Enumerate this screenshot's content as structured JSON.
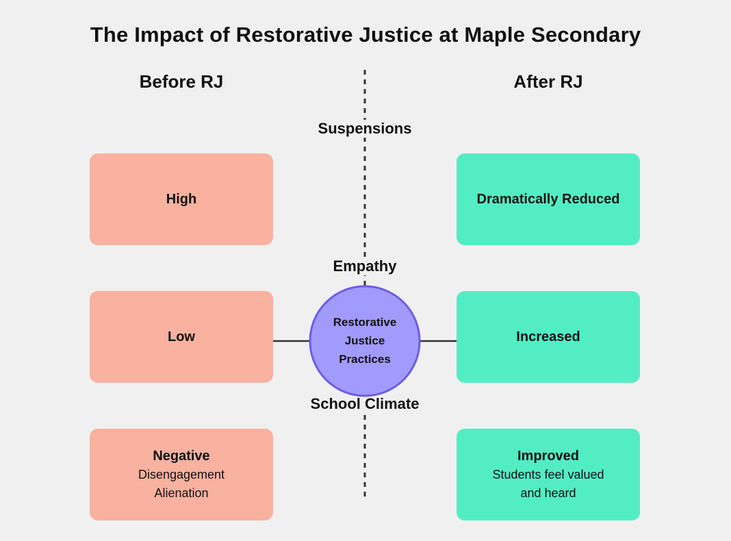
{
  "title": "The Impact of Restorative Justice at Maple Secondary",
  "columns": {
    "before": "Before RJ",
    "after": "After RJ"
  },
  "center": {
    "lines": [
      "Restorative",
      "Justice",
      "Practices"
    ]
  },
  "rows": [
    {
      "label": "Suspensions",
      "before": {
        "main": "High",
        "sub": []
      },
      "after": {
        "main": "Dramatically Reduced",
        "sub": []
      }
    },
    {
      "label": "Empathy",
      "before": {
        "main": "Low",
        "sub": []
      },
      "after": {
        "main": "Increased",
        "sub": []
      }
    },
    {
      "label": "School Climate",
      "before": {
        "main": "Negative",
        "sub": [
          "Disengagement",
          "Alienation"
        ]
      },
      "after": {
        "main": "Improved",
        "sub": [
          "Students feel valued",
          "and heard"
        ]
      }
    }
  ],
  "colors": {
    "before_box": "#f9b1a0",
    "after_box": "#53edc4",
    "center_fill": "#a29bfe",
    "center_stroke": "#6c5ce7",
    "arrow": "#333333",
    "divider": "#333333"
  }
}
